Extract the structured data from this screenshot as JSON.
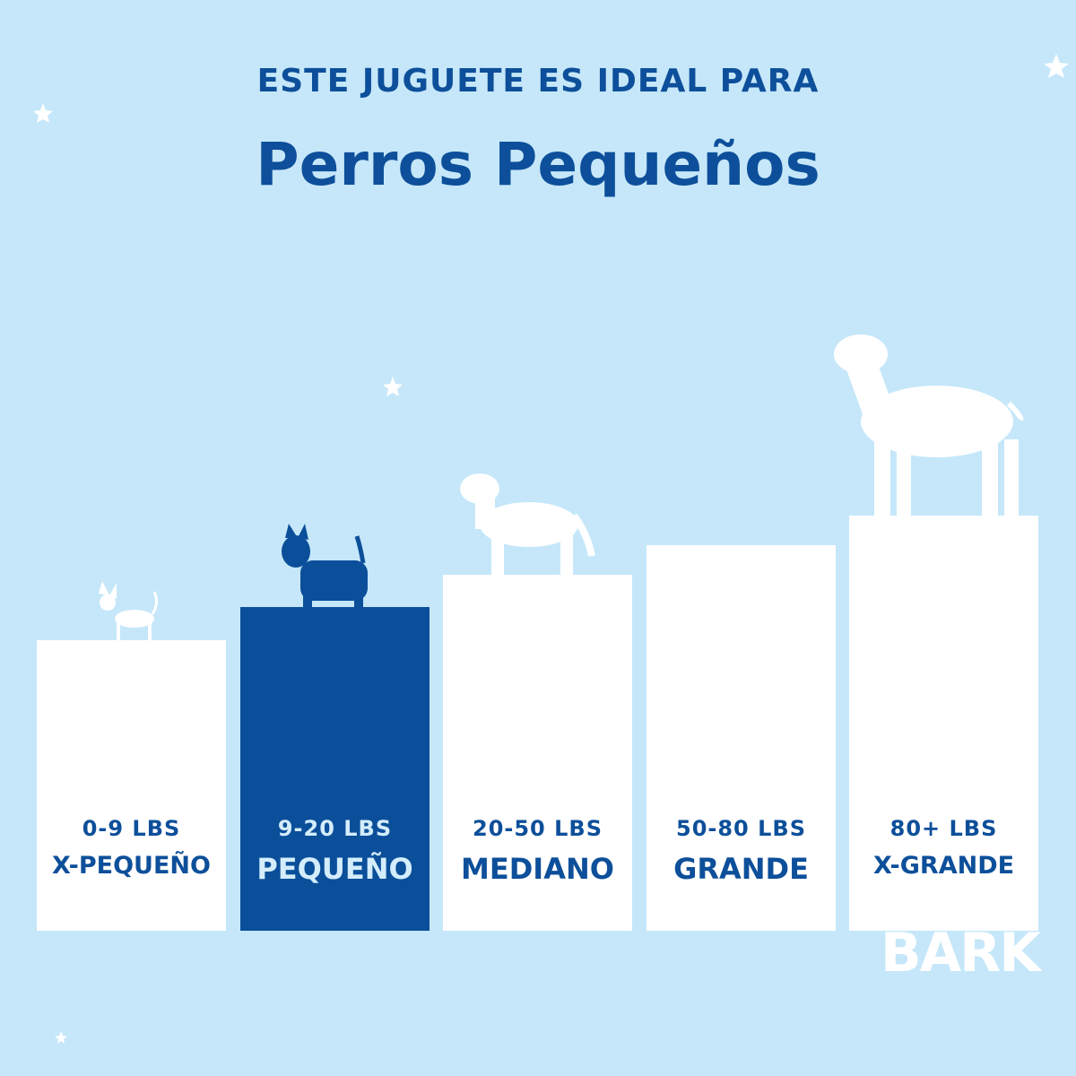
{
  "header": {
    "kicker": "ESTE JUGUETE ES IDEAL PARA",
    "title": "Perros Pequeños"
  },
  "sizes": [
    {
      "weight": "0-9 LBS",
      "label": "X-PEQUEÑO"
    },
    {
      "weight": "9-20 LBS",
      "label": "PEQUEÑO"
    },
    {
      "weight": "20-50 LBS",
      "label": "MEDIANO"
    },
    {
      "weight": "50-80 LBS",
      "label": "GRANDE"
    },
    {
      "weight": "80+ LBS",
      "label": "X-GRANDE"
    }
  ],
  "selected": 1,
  "brand": "BARK"
}
